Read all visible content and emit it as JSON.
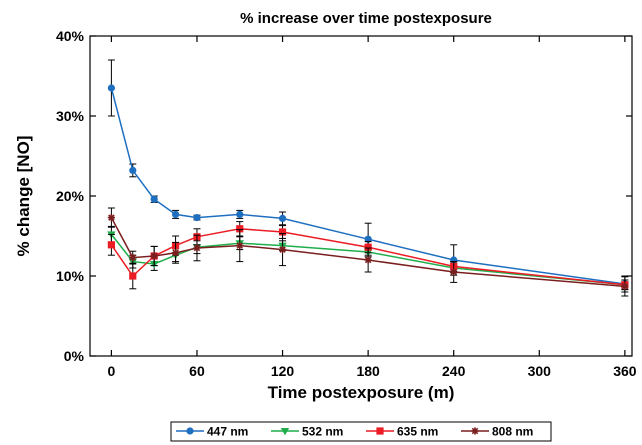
{
  "chart_data": {
    "type": "line",
    "title": "% increase over time postexposure",
    "xlabel": "Time postexposure (m)",
    "ylabel": "% change [NO]",
    "x": [
      0,
      15,
      30,
      45,
      60,
      90,
      120,
      180,
      240,
      360
    ],
    "xlim": [
      -15,
      365
    ],
    "ylim": [
      0,
      40
    ],
    "x_ticks": [
      0,
      60,
      120,
      180,
      240,
      300,
      360
    ],
    "x_tick_labels": [
      "0",
      "60",
      "120",
      "180",
      "240",
      "300",
      "360"
    ],
    "y_ticks": [
      0,
      10,
      20,
      30,
      40
    ],
    "y_tick_labels": [
      "0%",
      "10%",
      "20%",
      "30%",
      "40%"
    ],
    "grid": false,
    "legend_position": "bottom",
    "series": [
      {
        "name": "447 nm",
        "color": "#1f6fc1",
        "marker": "circle",
        "values": [
          33.5,
          23.2,
          19.6,
          17.7,
          17.3,
          17.7,
          17.2,
          14.6,
          12.0,
          9.0
        ],
        "errors": [
          3.5,
          0.8,
          0.4,
          0.5,
          0.3,
          0.5,
          0.8,
          2.0,
          1.9,
          1.0
        ]
      },
      {
        "name": "532 nm",
        "color": "#1fae4a",
        "marker": "triangle-down",
        "values": [
          15.2,
          11.8,
          11.5,
          12.6,
          13.6,
          14.1,
          13.8,
          13.0,
          11.0,
          8.9
        ],
        "errors": [
          1.0,
          0.8,
          0.8,
          0.8,
          0.8,
          0.8,
          0.6,
          0.6,
          0.6,
          0.6
        ]
      },
      {
        "name": "635 nm",
        "color": "#ec1c24",
        "marker": "square",
        "values": [
          13.9,
          10.0,
          12.5,
          13.8,
          14.9,
          15.9,
          15.5,
          13.6,
          11.2,
          8.9
        ],
        "errors": [
          1.3,
          1.6,
          1.2,
          1.2,
          1.0,
          0.9,
          0.8,
          0.7,
          0.6,
          0.6
        ]
      },
      {
        "name": "808 nm",
        "color": "#7a1f1f",
        "marker": "asterisk",
        "values": [
          17.3,
          12.3,
          12.5,
          12.9,
          13.5,
          13.8,
          13.3,
          12.0,
          10.5,
          8.7
        ],
        "errors": [
          1.2,
          0.8,
          1.2,
          1.3,
          1.6,
          2.0,
          2.0,
          1.5,
          1.3,
          1.2
        ]
      }
    ]
  }
}
